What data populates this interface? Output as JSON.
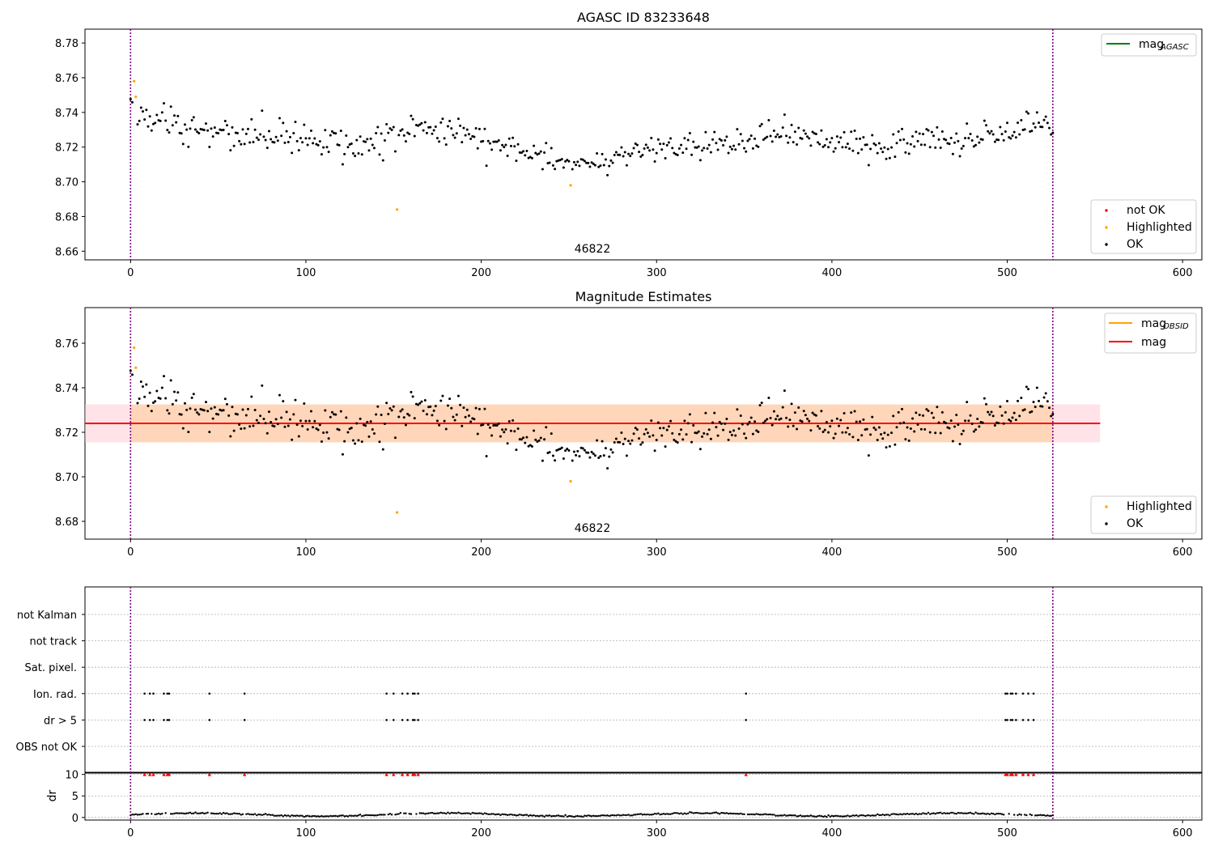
{
  "chart_data": [
    {
      "type": "scatter",
      "title": "AGASC ID 83233648",
      "xlim": [
        -26,
        611
      ],
      "ylim": [
        8.655,
        8.788
      ],
      "x_ticks": [
        0,
        100,
        200,
        300,
        400,
        500,
        600
      ],
      "y_ticks": [
        8.66,
        8.68,
        8.7,
        8.72,
        8.74,
        8.76,
        8.78
      ],
      "y_tick_labels": [
        "8.66",
        "8.68",
        "8.70",
        "8.72",
        "8.74",
        "8.76",
        "8.78"
      ],
      "vlines": [
        0,
        526
      ],
      "annotation": {
        "x": 262,
        "y": 8.658,
        "text": "46822"
      },
      "legend_top": {
        "label": "mag",
        "sub": "AGASC",
        "color": "#008000",
        "placement": "top-right"
      },
      "legend_bottom": {
        "placement": "lower-right",
        "entries": [
          {
            "label": "not OK",
            "color": "#ff0000"
          },
          {
            "label": "Highlighted",
            "color": "#ffa500"
          },
          {
            "label": "OK",
            "color": "#000000"
          }
        ]
      },
      "highlighted_points": [
        [
          2,
          8.758
        ],
        [
          3,
          8.749
        ],
        [
          152,
          8.684
        ],
        [
          251,
          8.698
        ]
      ],
      "grid": false
    },
    {
      "type": "scatter",
      "title": "Magnitude Estimates",
      "xlim": [
        -26,
        611
      ],
      "ylim": [
        8.672,
        8.776
      ],
      "x_ticks": [
        0,
        100,
        200,
        300,
        400,
        500,
        600
      ],
      "y_ticks": [
        8.68,
        8.7,
        8.72,
        8.74,
        8.76
      ],
      "y_tick_labels": [
        "8.68",
        "8.70",
        "8.72",
        "8.74",
        "8.76"
      ],
      "vlines": [
        0,
        526
      ],
      "annotation": {
        "x": 262,
        "y": 8.675,
        "text": "46822"
      },
      "mag_line": {
        "value": 8.724,
        "x_range": [
          -26,
          553
        ],
        "band": [
          8.7155,
          8.7325
        ]
      },
      "legend_top": {
        "placement": "top-right",
        "entries": [
          {
            "label": "mag",
            "sub": "OBSID",
            "color": "#ffa500"
          },
          {
            "label": "mag",
            "sub": "",
            "color": "#ff0000"
          }
        ]
      },
      "legend_bottom": {
        "placement": "lower-right",
        "entries": [
          {
            "label": "Highlighted",
            "color": "#ffa500"
          },
          {
            "label": "OK",
            "color": "#000000"
          }
        ]
      },
      "highlighted_points": [
        [
          2,
          8.758
        ],
        [
          3,
          8.749
        ],
        [
          152,
          8.684
        ],
        [
          251,
          8.698
        ]
      ],
      "grid": false
    },
    {
      "type": "scatter",
      "title": "",
      "xlim": [
        -26,
        611
      ],
      "x_ticks": [
        0,
        100,
        200,
        300,
        400,
        500,
        600
      ],
      "vlines": [
        0,
        526
      ],
      "flag_rows": [
        "not Kalman",
        "not track",
        "Sat. pixel.",
        "Ion. rad.",
        "dr > 5",
        "OBS not OK"
      ],
      "flag_points": {
        "Ion. rad.": [
          8,
          11,
          13,
          19,
          21,
          22,
          45,
          65,
          146,
          150,
          155,
          158,
          161,
          162,
          164,
          351,
          499,
          500,
          502,
          503,
          505,
          509,
          512,
          515
        ],
        "dr > 5": [
          8,
          11,
          13,
          19,
          21,
          22,
          45,
          65,
          146,
          150,
          155,
          158,
          161,
          162,
          164,
          351,
          499,
          500,
          502,
          503,
          505,
          509,
          512,
          515
        ]
      },
      "dr_panel": {
        "ylabel": "dr",
        "ylim": [
          -0.6,
          10.5
        ],
        "y_ticks": [
          0,
          5,
          10
        ],
        "y_tick_labels": [
          "0",
          "5",
          "10"
        ],
        "clipped_at": 10,
        "clipped_x": [
          8,
          11,
          13,
          19,
          21,
          22,
          45,
          65,
          146,
          150,
          155,
          158,
          161,
          162,
          164,
          351,
          499,
          500,
          502,
          503,
          505,
          509,
          512,
          515
        ]
      },
      "grid": true
    }
  ],
  "series_info": {
    "n_points": 527,
    "ok_color": "#000000",
    "highlight_color": "#ffa500",
    "notok_color": "#ff0000",
    "band_colors": [
      "#ffc0cb",
      "#ffa500"
    ]
  }
}
